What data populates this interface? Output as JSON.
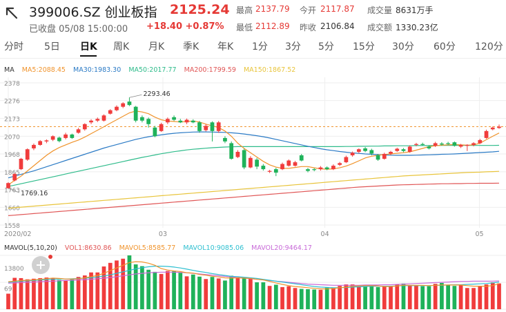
{
  "header": {
    "title": "399006.SZ 创业板指",
    "price": "2125.24",
    "status": "已收盘 05/08 15:00:00",
    "change": "+18.40 +0.87%"
  },
  "stats": [
    {
      "label": "最高",
      "value": "2137.79",
      "color": "red"
    },
    {
      "label": "今开",
      "value": "2117.87",
      "color": "red"
    },
    {
      "label": "成交量",
      "value": "8631万手",
      "color": "dark"
    },
    {
      "label": "最低",
      "value": "2112.89",
      "color": "red"
    },
    {
      "label": "昨收",
      "value": "2106.84",
      "color": "dark"
    },
    {
      "label": "成交额",
      "value": "1330.23亿",
      "color": "dark"
    }
  ],
  "tabs": [
    "分时",
    "5日",
    "日K",
    "周K",
    "月K",
    "季K",
    "年K",
    "1分",
    "3分",
    "5分",
    "15分",
    "30分",
    "60分",
    "120分"
  ],
  "active_tab": "日K",
  "ma_legend": {
    "title": "MA",
    "items": [
      {
        "text": "MA5:2088.45",
        "color": "#f0932b"
      },
      {
        "text": "MA30:1983.30",
        "color": "#2a7ac5"
      },
      {
        "text": "MA50:2017.77",
        "color": "#2dbb8a"
      },
      {
        "text": "MA200:1799.59",
        "color": "#e05555"
      },
      {
        "text": "MA150:1867.52",
        "color": "#e8c43a"
      }
    ]
  },
  "vol_legend": {
    "title": "MAVOL(5,10,20)",
    "items": [
      {
        "text": "VOL1:8630.86",
        "color": "#e05555"
      },
      {
        "text": "MAVOL5:8585.77",
        "color": "#f0932b"
      },
      {
        "text": "MAVOL10:9085.06",
        "color": "#2dbfd0"
      },
      {
        "text": "MAVOL20:9464.17",
        "color": "#c86ad8"
      }
    ]
  },
  "colors": {
    "up": "#f03c3c",
    "down": "#1fb25a",
    "last_price_line": "#f0932b"
  },
  "chart_data": {
    "type": "candlestick",
    "y_ticks": [
      "2378",
      "2276",
      "2173",
      "2070",
      "1968",
      "1865",
      "1763",
      "1660",
      "1558"
    ],
    "ylim": [
      1558,
      2378
    ],
    "x_labels": [
      "2020/02",
      "03",
      "04",
      "05"
    ],
    "annotations": [
      {
        "text": "2293.46",
        "type": "high",
        "value": 2293.46
      },
      {
        "text": "1769.16",
        "type": "low",
        "value": 1769.16
      }
    ],
    "last_price": 2125.24,
    "candles": [
      {
        "o": 1770,
        "c": 1800,
        "h": 1805,
        "l": 1769.16
      },
      {
        "o": 1815,
        "c": 1852,
        "h": 1858,
        "l": 1810
      },
      {
        "o": 1880,
        "c": 1940,
        "h": 1945,
        "l": 1875
      },
      {
        "o": 1935,
        "c": 1995,
        "h": 2000,
        "l": 1928
      },
      {
        "o": 2000,
        "c": 2020,
        "h": 2028,
        "l": 1990
      },
      {
        "o": 2020,
        "c": 2042,
        "h": 2048,
        "l": 2015
      },
      {
        "o": 2040,
        "c": 2046,
        "h": 2052,
        "l": 2030
      },
      {
        "o": 2050,
        "c": 2070,
        "h": 2075,
        "l": 2042
      },
      {
        "o": 2062,
        "c": 2042,
        "h": 2068,
        "l": 2035
      },
      {
        "o": 2060,
        "c": 2080,
        "h": 2090,
        "l": 2052
      },
      {
        "o": 2080,
        "c": 2060,
        "h": 2085,
        "l": 2055
      },
      {
        "o": 2090,
        "c": 2110,
        "h": 2118,
        "l": 2085
      },
      {
        "o": 2110,
        "c": 2140,
        "h": 2145,
        "l": 2102
      },
      {
        "o": 2150,
        "c": 2160,
        "h": 2168,
        "l": 2140
      },
      {
        "o": 2160,
        "c": 2170,
        "h": 2178,
        "l": 2152
      },
      {
        "o": 2160,
        "c": 2190,
        "h": 2196,
        "l": 2155
      },
      {
        "o": 2200,
        "c": 2220,
        "h": 2226,
        "l": 2195
      },
      {
        "o": 2220,
        "c": 2240,
        "h": 2248,
        "l": 2214
      },
      {
        "o": 2240,
        "c": 2260,
        "h": 2266,
        "l": 2232
      },
      {
        "o": 2270,
        "c": 2250,
        "h": 2293.46,
        "l": 2244
      },
      {
        "o": 2240,
        "c": 2160,
        "h": 2245,
        "l": 2150
      },
      {
        "o": 2180,
        "c": 2160,
        "h": 2190,
        "l": 2150
      },
      {
        "o": 2170,
        "c": 2140,
        "h": 2178,
        "l": 2120
      },
      {
        "o": 2120,
        "c": 2070,
        "h": 2130,
        "l": 2064
      },
      {
        "o": 2100,
        "c": 2140,
        "h": 2148,
        "l": 2095
      },
      {
        "o": 2150,
        "c": 2170,
        "h": 2178,
        "l": 2140
      },
      {
        "o": 2180,
        "c": 2165,
        "h": 2190,
        "l": 2158
      },
      {
        "o": 2160,
        "c": 2150,
        "h": 2170,
        "l": 2146
      },
      {
        "o": 2150,
        "c": 2165,
        "h": 2172,
        "l": 2140
      },
      {
        "o": 2160,
        "c": 2150,
        "h": 2168,
        "l": 2145
      },
      {
        "o": 2150,
        "c": 2100,
        "h": 2158,
        "l": 2090
      },
      {
        "o": 2105,
        "c": 2130,
        "h": 2140,
        "l": 2098
      },
      {
        "o": 2150,
        "c": 2100,
        "h": 2156,
        "l": 2040
      },
      {
        "o": 2100,
        "c": 2150,
        "h": 2158,
        "l": 2090
      },
      {
        "o": 2060,
        "c": 2040,
        "h": 2070,
        "l": 2030
      },
      {
        "o": 2030,
        "c": 1940,
        "h": 2040,
        "l": 1935
      },
      {
        "o": 1950,
        "c": 1980,
        "h": 1990,
        "l": 1944
      },
      {
        "o": 1990,
        "c": 1890,
        "h": 1998,
        "l": 1880
      },
      {
        "o": 1890,
        "c": 1945,
        "h": 1955,
        "l": 1885
      },
      {
        "o": 1935,
        "c": 1895,
        "h": 1945,
        "l": 1880
      },
      {
        "o": 1900,
        "c": 1880,
        "h": 1910,
        "l": 1872
      },
      {
        "o": 1865,
        "c": 1870,
        "h": 1876,
        "l": 1858
      },
      {
        "o": 1880,
        "c": 1860,
        "h": 1888,
        "l": 1840
      },
      {
        "o": 1880,
        "c": 1910,
        "h": 1918,
        "l": 1875
      },
      {
        "o": 1900,
        "c": 1930,
        "h": 1936,
        "l": 1895
      },
      {
        "o": 1900,
        "c": 1920,
        "h": 1928,
        "l": 1895
      },
      {
        "o": 1960,
        "c": 1930,
        "h": 1968,
        "l": 1925
      },
      {
        "o": 1880,
        "c": 1870,
        "h": 1888,
        "l": 1862
      },
      {
        "o": 1880,
        "c": 1875,
        "h": 1886,
        "l": 1868
      },
      {
        "o": 1880,
        "c": 1890,
        "h": 1898,
        "l": 1872
      },
      {
        "o": 1890,
        "c": 1880,
        "h": 1896,
        "l": 1874
      },
      {
        "o": 1880,
        "c": 1900,
        "h": 1908,
        "l": 1875
      },
      {
        "o": 1905,
        "c": 1915,
        "h": 1922,
        "l": 1898
      },
      {
        "o": 1920,
        "c": 1950,
        "h": 1958,
        "l": 1915
      },
      {
        "o": 1960,
        "c": 1975,
        "h": 1982,
        "l": 1952
      },
      {
        "o": 1980,
        "c": 1995,
        "h": 2000,
        "l": 1972
      },
      {
        "o": 2000,
        "c": 1985,
        "h": 2008,
        "l": 1978
      },
      {
        "o": 1990,
        "c": 1970,
        "h": 1998,
        "l": 1960
      },
      {
        "o": 1960,
        "c": 1935,
        "h": 1968,
        "l": 1928
      },
      {
        "o": 1940,
        "c": 1968,
        "h": 1975,
        "l": 1935
      },
      {
        "o": 1970,
        "c": 1980,
        "h": 1986,
        "l": 1962
      },
      {
        "o": 1985,
        "c": 1998,
        "h": 2004,
        "l": 1980
      },
      {
        "o": 1995,
        "c": 1985,
        "h": 2002,
        "l": 1978
      },
      {
        "o": 1980,
        "c": 2010,
        "h": 2018,
        "l": 1975
      },
      {
        "o": 2020,
        "c": 2025,
        "h": 2032,
        "l": 2012
      },
      {
        "o": 2025,
        "c": 2020,
        "h": 2033,
        "l": 2014
      },
      {
        "o": 2010,
        "c": 2000,
        "h": 2018,
        "l": 1994
      },
      {
        "o": 2015,
        "c": 2030,
        "h": 2038,
        "l": 2008
      },
      {
        "o": 2028,
        "c": 2022,
        "h": 2036,
        "l": 2016
      },
      {
        "o": 2030,
        "c": 2025,
        "h": 2038,
        "l": 2020
      },
      {
        "o": 2035,
        "c": 2015,
        "h": 2040,
        "l": 2010
      },
      {
        "o": 2010,
        "c": 2020,
        "h": 2026,
        "l": 2002
      },
      {
        "o": 2015,
        "c": 2020,
        "h": 2024,
        "l": 1985
      },
      {
        "o": 2020,
        "c": 2030,
        "h": 2036,
        "l": 2012
      },
      {
        "o": 2030,
        "c": 2048,
        "h": 2055,
        "l": 2025
      },
      {
        "o": 2060,
        "c": 2100,
        "h": 2108,
        "l": 2055
      },
      {
        "o": 2110,
        "c": 2120,
        "h": 2126,
        "l": 2104
      },
      {
        "o": 2117.87,
        "c": 2125.24,
        "h": 2137.79,
        "l": 2112.89
      }
    ],
    "ma5": [
      1790,
      1815,
      1840,
      1870,
      1900,
      1930,
      1960,
      1985,
      2005,
      2020,
      2035,
      2048,
      2065,
      2085,
      2105,
      2125,
      2145,
      2165,
      2185,
      2205,
      2215,
      2210,
      2200,
      2180,
      2165,
      2158,
      2155,
      2152,
      2155,
      2158,
      2152,
      2140,
      2130,
      2120,
      2100,
      2070,
      2030,
      2000,
      1975,
      1950,
      1925,
      1905,
      1892,
      1885,
      1885,
      1890,
      1895,
      1895,
      1888,
      1882,
      1880,
      1882,
      1888,
      1898,
      1912,
      1928,
      1945,
      1955,
      1960,
      1965,
      1968,
      1972,
      1975,
      1980,
      1990,
      2000,
      2010,
      2015,
      2018,
      2020,
      2022,
      2020,
      2018,
      2020,
      2030,
      2050,
      2070,
      2088.45
    ],
    "ma30": [
      1830,
      1840,
      1850,
      1860,
      1870,
      1882,
      1894,
      1906,
      1918,
      1930,
      1942,
      1954,
      1966,
      1978,
      1990,
      2002,
      2012,
      2022,
      2032,
      2042,
      2052,
      2060,
      2067,
      2073,
      2078,
      2083,
      2087,
      2090,
      2092,
      2094,
      2095,
      2095,
      2094,
      2093,
      2092,
      2090,
      2087,
      2083,
      2078,
      2073,
      2067,
      2060,
      2052,
      2044,
      2036,
      2028,
      2020,
      2012,
      2005,
      1998,
      1992,
      1987,
      1982,
      1978,
      1974,
      1971,
      1968,
      1966,
      1964,
      1962,
      1961,
      1960,
      1960,
      1960,
      1961,
      1962,
      1963,
      1964,
      1966,
      1967,
      1968,
      1970,
      1972,
      1974,
      1976,
      1978,
      1980,
      1983.3
    ],
    "ma50": [
      1780,
      1788,
      1796,
      1804,
      1812,
      1820,
      1828,
      1836,
      1844,
      1852,
      1860,
      1868,
      1876,
      1884,
      1892,
      1900,
      1908,
      1916,
      1924,
      1932,
      1940,
      1948,
      1955,
      1962,
      1969,
      1975,
      1981,
      1986,
      1991,
      1995,
      1998,
      2001,
      2004,
      2006,
      2008,
      2009,
      2010,
      2010,
      2010,
      2010,
      2010,
      2010,
      2010,
      2010,
      2010,
      2010,
      2010,
      2010,
      2010,
      2010,
      2010,
      2010,
      2010,
      2011,
      2011,
      2012,
      2012,
      2013,
      2013,
      2014,
      2014,
      2015,
      2015,
      2015,
      2016,
      2016,
      2016,
      2016,
      2017,
      2017,
      2017,
      2017,
      2017,
      2017,
      2017,
      2017,
      2017,
      2017.77
    ],
    "ma150": [
      1655,
      1658,
      1661,
      1664,
      1667,
      1670,
      1673,
      1676,
      1679,
      1682,
      1685,
      1688,
      1691,
      1694,
      1697,
      1700,
      1703,
      1706,
      1709,
      1712,
      1715,
      1718,
      1721,
      1724,
      1727,
      1730,
      1733,
      1736,
      1739,
      1742,
      1745,
      1748,
      1751,
      1754,
      1757,
      1760,
      1763,
      1766,
      1769,
      1772,
      1775,
      1778,
      1781,
      1784,
      1787,
      1790,
      1793,
      1796,
      1799,
      1802,
      1805,
      1808,
      1811,
      1814,
      1817,
      1820,
      1823,
      1826,
      1829,
      1832,
      1835,
      1838,
      1841,
      1843,
      1845,
      1847,
      1849,
      1851,
      1853,
      1855,
      1857,
      1859,
      1861,
      1862,
      1863,
      1865,
      1866,
      1867.52
    ],
    "ma200": [
      1612,
      1615,
      1618,
      1621,
      1624,
      1627,
      1630,
      1633,
      1636,
      1639,
      1642,
      1645,
      1648,
      1651,
      1654,
      1657,
      1660,
      1663,
      1666,
      1669,
      1672,
      1675,
      1678,
      1681,
      1684,
      1687,
      1690,
      1693,
      1696,
      1699,
      1702,
      1705,
      1708,
      1711,
      1714,
      1717,
      1720,
      1723,
      1726,
      1729,
      1732,
      1735,
      1738,
      1741,
      1744,
      1747,
      1750,
      1753,
      1756,
      1759,
      1762,
      1765,
      1768,
      1771,
      1774,
      1777,
      1779,
      1781,
      1783,
      1785,
      1787,
      1789,
      1790,
      1791,
      1792,
      1793,
      1794,
      1795,
      1796,
      1796,
      1797,
      1797,
      1798,
      1798,
      1799,
      1799,
      1799,
      1799.59
    ],
    "volume": {
      "y_tick": "13800",
      "y_tick_low": "69",
      "ylim": [
        0,
        18000
      ],
      "values": [
        5200,
        10500,
        10400,
        10000,
        10200,
        10400,
        10600,
        10300,
        9800,
        9600,
        10000,
        10800,
        11300,
        12300,
        12300,
        14300,
        15500,
        16300,
        16900,
        18000,
        15000,
        14400,
        13200,
        12500,
        11800,
        12800,
        12700,
        12200,
        11000,
        11600,
        10900,
        10100,
        10800,
        10300,
        9600,
        11200,
        10700,
        10400,
        10200,
        9000,
        9000,
        7800,
        8200,
        7400,
        7700,
        7100,
        6800,
        6700,
        6600,
        6500,
        7200,
        7200,
        7800,
        8300,
        8300,
        7700,
        7700,
        7800,
        7400,
        7500,
        7700,
        8400,
        8600,
        8000,
        7900,
        7700,
        7700,
        8500,
        8800,
        8000,
        7800,
        8000,
        7100,
        7100,
        7700,
        8300,
        9000,
        8630.86
      ],
      "mavol5": [
        9200,
        9400,
        9600,
        9700,
        9800,
        10000,
        10200,
        10400,
        10300,
        10100,
        10100,
        10200,
        10500,
        10900,
        11300,
        12000,
        12900,
        13800,
        14700,
        15600,
        15900,
        15800,
        15400,
        14700,
        13600,
        13100,
        12800,
        12600,
        12200,
        12100,
        11600,
        11400,
        11000,
        10800,
        10500,
        10400,
        10500,
        10400,
        10300,
        10000,
        9800,
        9300,
        8800,
        8300,
        7900,
        7600,
        7400,
        7200,
        7000,
        6800,
        6800,
        6900,
        7200,
        7400,
        7700,
        7800,
        7900,
        7900,
        7800,
        7600,
        7600,
        7800,
        8000,
        8000,
        8000,
        8000,
        7900,
        8000,
        8100,
        8100,
        8100,
        8100,
        7900,
        7700,
        7700,
        7700,
        7900,
        8585.77
      ],
      "mavol10": [
        9000,
        9200,
        9400,
        9500,
        9600,
        9800,
        9900,
        10000,
        10100,
        10100,
        10200,
        10300,
        10400,
        10500,
        10800,
        11100,
        11500,
        12000,
        12500,
        13000,
        13500,
        13900,
        14200,
        14400,
        14400,
        14300,
        14100,
        13800,
        13400,
        13000,
        12600,
        12300,
        11900,
        11600,
        11300,
        11000,
        10900,
        10700,
        10500,
        10300,
        10000,
        9700,
        9400,
        9100,
        8800,
        8500,
        8200,
        7900,
        7600,
        7400,
        7300,
        7200,
        7200,
        7300,
        7400,
        7500,
        7600,
        7700,
        7700,
        7700,
        7700,
        7800,
        7900,
        7900,
        7900,
        7900,
        7900,
        8000,
        8000,
        8100,
        8200,
        8200,
        8300,
        8400,
        8500,
        8600,
        8800,
        9085.06
      ],
      "mavol20": [
        8700,
        8800,
        8900,
        9000,
        9100,
        9200,
        9300,
        9400,
        9500,
        9600,
        9700,
        9800,
        9900,
        10000,
        10200,
        10400,
        10600,
        10900,
        11200,
        11500,
        11800,
        12000,
        12200,
        12300,
        12400,
        12400,
        12400,
        12300,
        12200,
        12000,
        11800,
        11600,
        11400,
        11200,
        11000,
        10800,
        10600,
        10400,
        10200,
        10000,
        9800,
        9600,
        9400,
        9200,
        9000,
        8800,
        8600,
        8400,
        8300,
        8200,
        8100,
        8000,
        8000,
        8000,
        8000,
        8000,
        8100,
        8100,
        8100,
        8200,
        8200,
        8300,
        8400,
        8500,
        8600,
        8700,
        8800,
        8900,
        9000,
        9100,
        9200,
        9300,
        9300,
        9400,
        9400,
        9400,
        9400,
        9464.17
      ]
    }
  }
}
